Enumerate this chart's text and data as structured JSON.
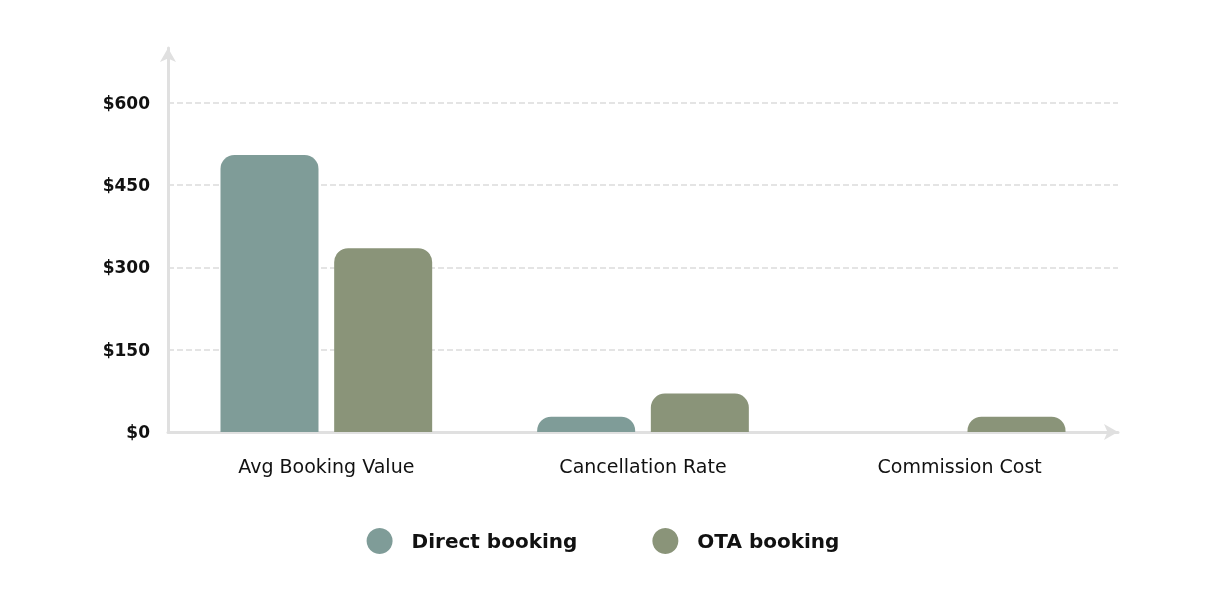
{
  "chart_data": {
    "type": "bar",
    "categories": [
      "Avg Booking Value",
      "Cancellation Rate",
      "Commission Cost"
    ],
    "series": [
      {
        "name": "Direct booking",
        "color": "#7f9c98",
        "values": [
          505,
          28,
          0
        ]
      },
      {
        "name": "OTA booking",
        "color": "#8a9479",
        "values": [
          335,
          70,
          28
        ]
      }
    ],
    "ylim": [
      0,
      700
    ],
    "yticks": [
      {
        "value": 0,
        "label": "$0"
      },
      {
        "value": 150,
        "label": "$150"
      },
      {
        "value": 300,
        "label": "$300"
      },
      {
        "value": 450,
        "label": "$450"
      },
      {
        "value": 600,
        "label": "$600"
      }
    ],
    "grid": "y",
    "legend": "bottom"
  }
}
